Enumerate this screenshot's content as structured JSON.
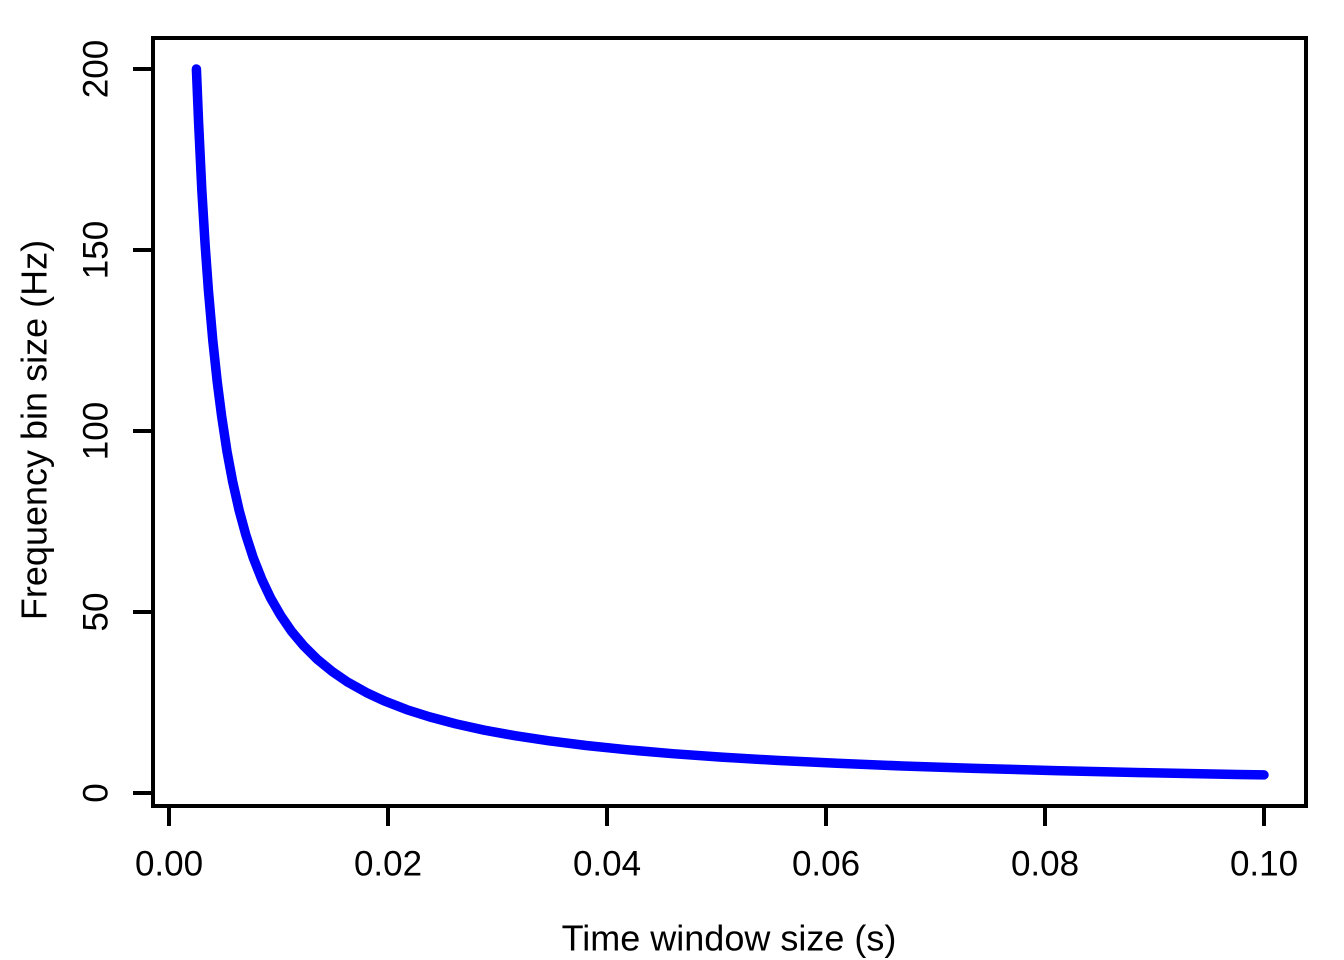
{
  "figure": {
    "background_color": "#FFFFFF",
    "axis_color": "#000000",
    "text_color": "#000000"
  },
  "chart_data": {
    "type": "line",
    "title": "",
    "xlabel": "Time window size (s)",
    "ylabel": "Frequency bin size (Hz)",
    "xlim": [
      0,
      0.1
    ],
    "ylim": [
      0,
      200
    ],
    "grid": false,
    "legend": "none",
    "x_ticks": {
      "values": [
        0,
        0.02,
        0.04,
        0.06,
        0.08,
        0.1
      ],
      "labels": [
        "0.00",
        "0.02",
        "0.04",
        "0.06",
        "0.08",
        "0.10"
      ]
    },
    "y_ticks": {
      "values": [
        0,
        50,
        100,
        150,
        200
      ],
      "labels": [
        "0",
        "50",
        "100",
        "150",
        "200"
      ]
    },
    "series": [
      {
        "name": "frequency-bin-size-curve",
        "relation": "y = 0.5 / x",
        "color": "#0000FF",
        "line_width": 9.5,
        "x": [
          0.0025,
          0.0027,
          0.003,
          0.0033,
          0.0036,
          0.004,
          0.0044,
          0.0048,
          0.0053,
          0.0058,
          0.0064,
          0.007,
          0.0077,
          0.0085,
          0.0093,
          0.0102,
          0.0112,
          0.0123,
          0.0135,
          0.0149,
          0.0163,
          0.018,
          0.0197,
          0.0217,
          0.0238,
          0.0262,
          0.0288,
          0.0316,
          0.0347,
          0.0381,
          0.0419,
          0.046,
          0.0506,
          0.0555,
          0.061,
          0.067,
          0.0736,
          0.0809,
          0.0888,
          0.0976,
          0.1
        ],
        "y": [
          200,
          185.19,
          166.67,
          151.52,
          138.89,
          125,
          113.64,
          104.17,
          94.34,
          86.21,
          78.13,
          71.43,
          64.94,
          58.82,
          53.76,
          49.02,
          44.64,
          40.65,
          37.04,
          33.56,
          30.67,
          27.78,
          25.38,
          23.04,
          21.01,
          19.08,
          17.36,
          15.82,
          14.41,
          13.12,
          11.93,
          10.87,
          9.88,
          9.01,
          8.2,
          7.46,
          6.79,
          6.18,
          5.63,
          5.12,
          5
        ]
      }
    ]
  }
}
